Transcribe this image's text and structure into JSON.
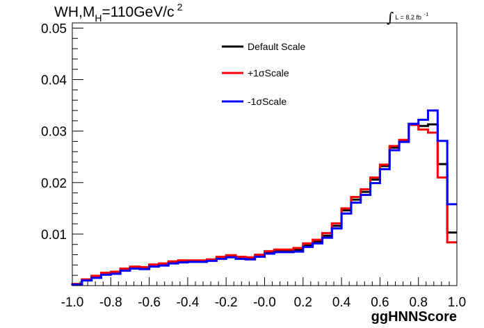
{
  "chart_data": {
    "type": "line",
    "title": {
      "main": "WH,M",
      "subscript": "H",
      "rest": "=110GeV/c",
      "superscript": "2"
    },
    "luminosity": {
      "symbol": "∫",
      "text": "L = 8.2 fb",
      "exponent": "-1"
    },
    "xlabel": "ggHNNScore",
    "ylabel": "",
    "xlim": [
      -1.0,
      1.0
    ],
    "ylim": [
      0,
      0.051
    ],
    "xticks": [
      "-1.0",
      "-0.8",
      "-0.6",
      "-0.4",
      "-0.2",
      "-0.0",
      "0.2",
      "0.4",
      "0.6",
      "0.8",
      "1.0"
    ],
    "yticks": [
      "0.01",
      "0.02",
      "0.03",
      "0.04",
      "0.05"
    ],
    "bin_edges": [
      -1.0,
      -0.95,
      -0.9,
      -0.85,
      -0.8,
      -0.75,
      -0.7,
      -0.65,
      -0.6,
      -0.55,
      -0.5,
      -0.45,
      -0.4,
      -0.35,
      -0.3,
      -0.25,
      -0.2,
      -0.15,
      -0.1,
      -0.05,
      0.0,
      0.05,
      0.1,
      0.15,
      0.2,
      0.25,
      0.3,
      0.35,
      0.4,
      0.45,
      0.5,
      0.55,
      0.6,
      0.65,
      0.7,
      0.75,
      0.8,
      0.85,
      0.9,
      0.95,
      1.0
    ],
    "series": [
      {
        "name": "Default Scale",
        "color": "#000000",
        "values": [
          0.0003,
          0.0012,
          0.0017,
          0.0023,
          0.0025,
          0.0031,
          0.0035,
          0.0034,
          0.0039,
          0.0041,
          0.0045,
          0.0047,
          0.0048,
          0.0048,
          0.005,
          0.0054,
          0.0057,
          0.0054,
          0.0053,
          0.0058,
          0.0064,
          0.0067,
          0.0067,
          0.0069,
          0.0078,
          0.0085,
          0.0097,
          0.0116,
          0.0146,
          0.0167,
          0.0182,
          0.0206,
          0.0232,
          0.0268,
          0.0282,
          0.0314,
          0.031,
          0.0313,
          0.0236,
          0.0103
        ]
      },
      {
        "name": "+1σScale",
        "color": "#ff0000",
        "values": [
          0.0003,
          0.0012,
          0.0019,
          0.0025,
          0.0027,
          0.0033,
          0.0037,
          0.0036,
          0.0041,
          0.0043,
          0.0047,
          0.0049,
          0.0049,
          0.0049,
          0.0051,
          0.0056,
          0.0059,
          0.0056,
          0.0055,
          0.006,
          0.0067,
          0.007,
          0.007,
          0.0073,
          0.0082,
          0.0089,
          0.0102,
          0.0121,
          0.015,
          0.0172,
          0.0187,
          0.021,
          0.0235,
          0.0271,
          0.0283,
          0.0312,
          0.0303,
          0.0297,
          0.021,
          0.0084
        ]
      },
      {
        "name": "-1σScale",
        "color": "#0000ff",
        "values": [
          0.0002,
          0.001,
          0.0015,
          0.0021,
          0.0023,
          0.0029,
          0.0033,
          0.0032,
          0.0037,
          0.0039,
          0.0043,
          0.0045,
          0.0046,
          0.0046,
          0.0048,
          0.0052,
          0.0055,
          0.0052,
          0.0051,
          0.0056,
          0.0062,
          0.0065,
          0.0065,
          0.0066,
          0.0075,
          0.0082,
          0.0093,
          0.0111,
          0.014,
          0.0161,
          0.0176,
          0.0199,
          0.0226,
          0.0263,
          0.0279,
          0.0314,
          0.0322,
          0.034,
          0.0281,
          0.0158
        ]
      }
    ],
    "legend": "top-center",
    "grid": false
  }
}
